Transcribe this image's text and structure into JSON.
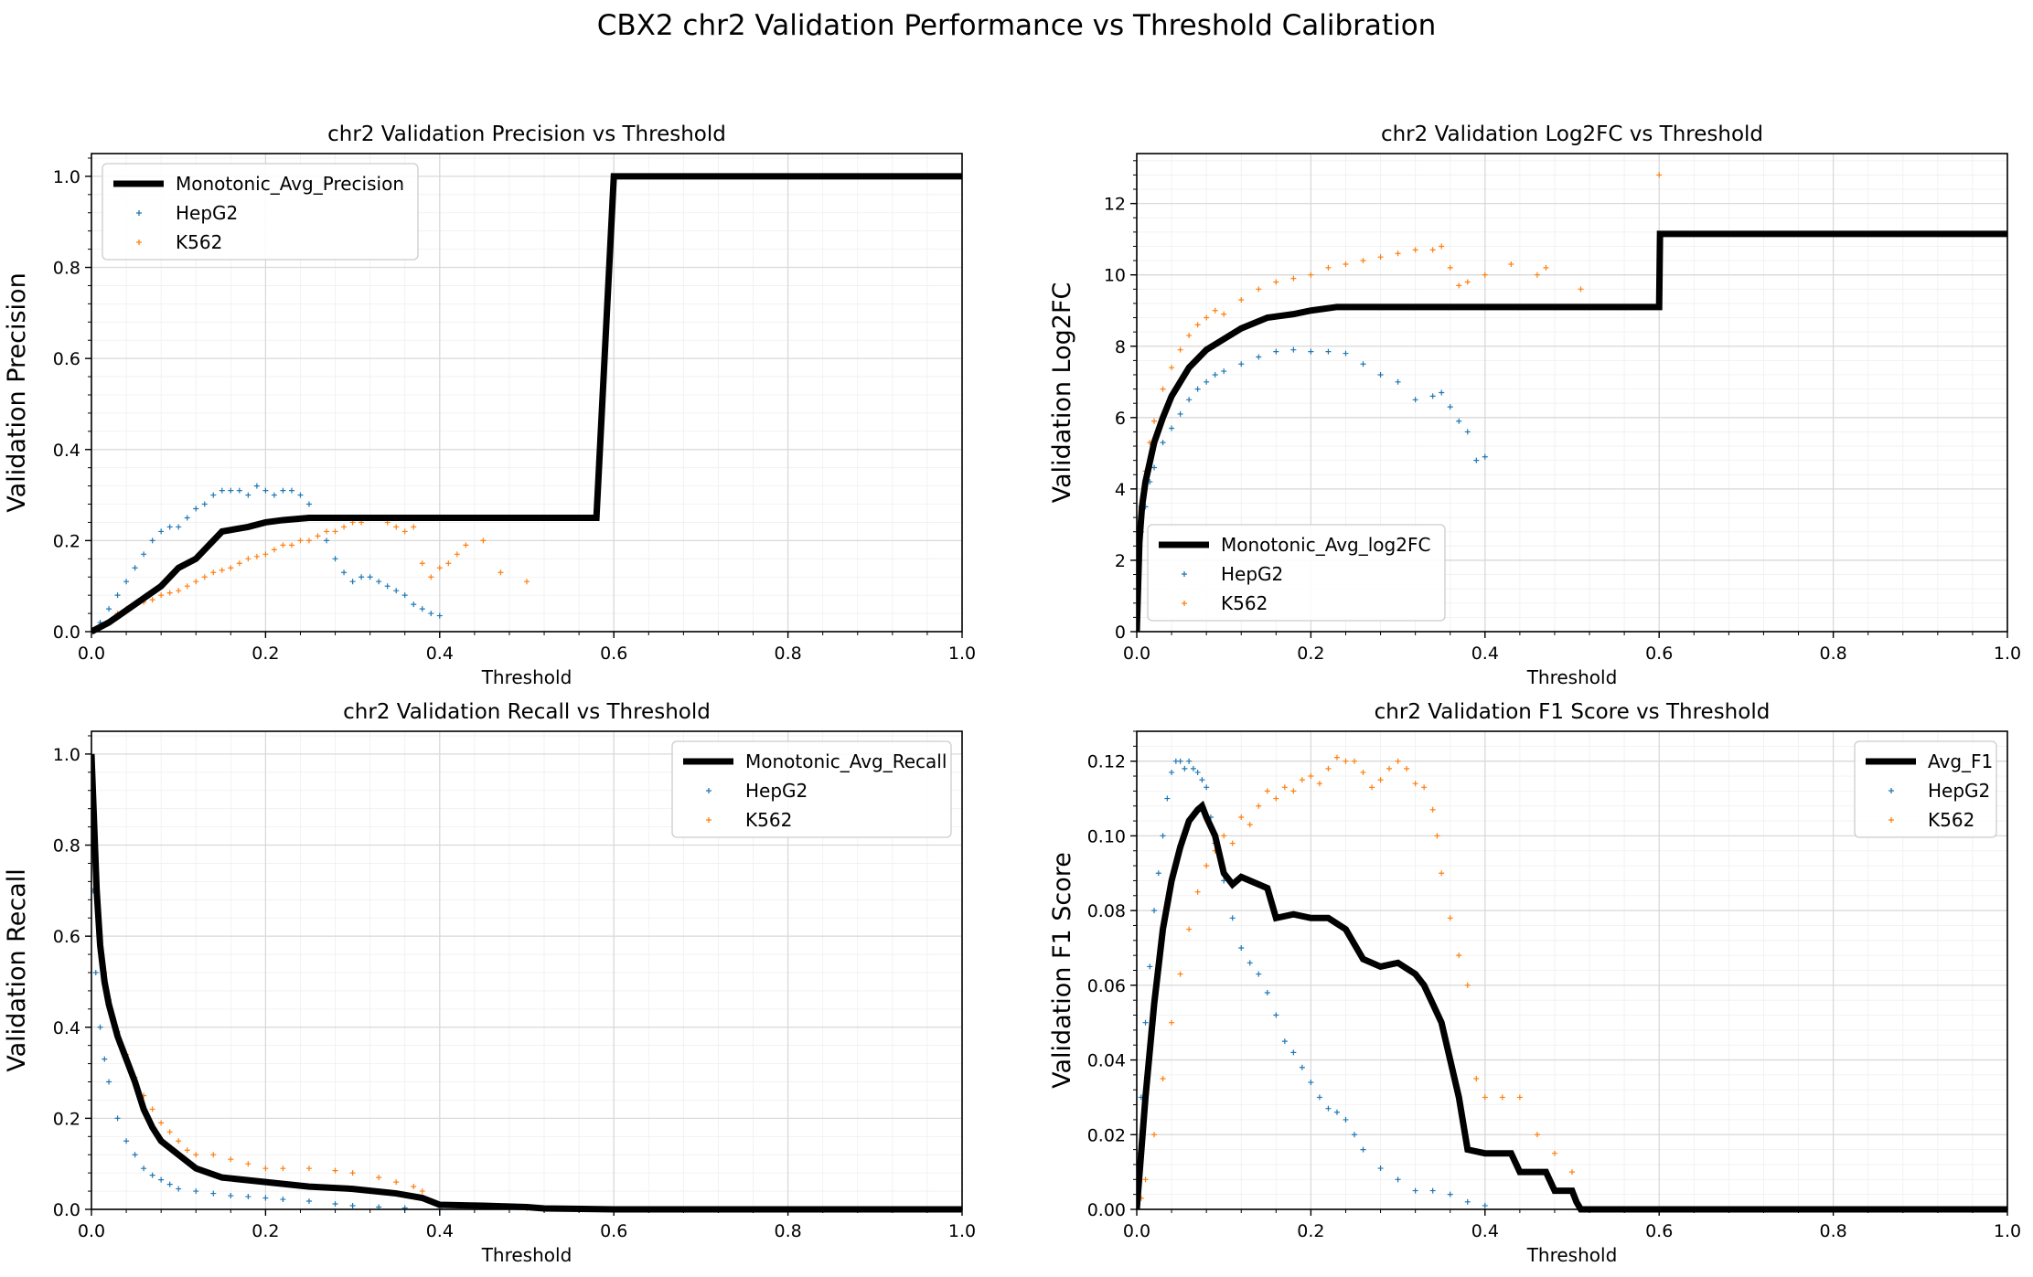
{
  "figure": {
    "suptitle": "CBX2 chr2 Validation Performance vs Threshold Calibration"
  },
  "colors": {
    "hepg2": "#1f77b4",
    "k562": "#ff7f0e",
    "avg": "#000000",
    "grid_major": "#d9d9d9",
    "grid_minor": "#efefef"
  },
  "chart_data": [
    {
      "type": "line",
      "title": "chr2 Validation Precision vs Threshold",
      "xlabel": "Threshold",
      "ylabel": "Validation Precision",
      "xlim": [
        0,
        1
      ],
      "ylim": [
        0,
        1.05
      ],
      "xticks": [
        "0.0",
        "0.2",
        "0.4",
        "0.6",
        "0.8",
        "1.0"
      ],
      "yticks": [
        "0.0",
        "0.2",
        "0.4",
        "0.6",
        "0.8",
        "1.0"
      ],
      "grid": true,
      "legend_position": "upper left",
      "series": [
        {
          "name": "Monotonic_Avg_Precision",
          "style": "line",
          "color": "#000000",
          "x": [
            0,
            0.02,
            0.05,
            0.08,
            0.1,
            0.12,
            0.15,
            0.18,
            0.2,
            0.22,
            0.25,
            0.3,
            0.35,
            0.4,
            0.5,
            0.58,
            0.6,
            0.7,
            0.8,
            1.0
          ],
          "y": [
            0,
            0.02,
            0.06,
            0.1,
            0.14,
            0.16,
            0.22,
            0.23,
            0.24,
            0.245,
            0.25,
            0.25,
            0.25,
            0.25,
            0.25,
            0.25,
            1.0,
            1.0,
            1.0,
            1.0
          ]
        },
        {
          "name": "HepG2",
          "style": "scatter",
          "color": "#1f77b4",
          "x": [
            0,
            0.01,
            0.02,
            0.03,
            0.04,
            0.05,
            0.06,
            0.07,
            0.08,
            0.09,
            0.1,
            0.11,
            0.12,
            0.13,
            0.14,
            0.15,
            0.16,
            0.17,
            0.18,
            0.19,
            0.2,
            0.21,
            0.22,
            0.23,
            0.24,
            0.25,
            0.26,
            0.27,
            0.28,
            0.29,
            0.3,
            0.31,
            0.32,
            0.33,
            0.34,
            0.35,
            0.36,
            0.37,
            0.38,
            0.39,
            0.4
          ],
          "y": [
            0,
            0.02,
            0.05,
            0.08,
            0.11,
            0.14,
            0.17,
            0.2,
            0.22,
            0.23,
            0.23,
            0.25,
            0.27,
            0.28,
            0.3,
            0.31,
            0.31,
            0.31,
            0.3,
            0.32,
            0.31,
            0.3,
            0.31,
            0.31,
            0.3,
            0.28,
            0.25,
            0.2,
            0.16,
            0.13,
            0.11,
            0.12,
            0.12,
            0.11,
            0.1,
            0.09,
            0.08,
            0.06,
            0.05,
            0.04,
            0.035
          ]
        },
        {
          "name": "K562",
          "style": "scatter",
          "color": "#ff7f0e",
          "x": [
            0.01,
            0.02,
            0.03,
            0.04,
            0.05,
            0.06,
            0.07,
            0.08,
            0.09,
            0.1,
            0.11,
            0.12,
            0.13,
            0.14,
            0.15,
            0.16,
            0.17,
            0.18,
            0.19,
            0.2,
            0.21,
            0.22,
            0.23,
            0.24,
            0.25,
            0.26,
            0.27,
            0.28,
            0.29,
            0.3,
            0.31,
            0.32,
            0.33,
            0.34,
            0.35,
            0.36,
            0.37,
            0.38,
            0.39,
            0.4,
            0.41,
            0.42,
            0.43,
            0.45,
            0.47,
            0.5
          ],
          "y": [
            0.01,
            0.02,
            0.04,
            0.05,
            0.06,
            0.065,
            0.07,
            0.08,
            0.085,
            0.09,
            0.1,
            0.11,
            0.12,
            0.13,
            0.135,
            0.14,
            0.15,
            0.16,
            0.165,
            0.17,
            0.18,
            0.19,
            0.19,
            0.2,
            0.2,
            0.21,
            0.22,
            0.22,
            0.23,
            0.24,
            0.24,
            0.25,
            0.25,
            0.24,
            0.23,
            0.22,
            0.23,
            0.15,
            0.12,
            0.14,
            0.15,
            0.17,
            0.19,
            0.2,
            0.13,
            0.11
          ]
        }
      ]
    },
    {
      "type": "line",
      "title": "chr2 Validation Log2FC vs Threshold",
      "xlabel": "Threshold",
      "ylabel": "Validation Log2FC",
      "xlim": [
        0,
        1
      ],
      "ylim": [
        0,
        13.4
      ],
      "xticks": [
        "0.0",
        "0.2",
        "0.4",
        "0.6",
        "0.8",
        "1.0"
      ],
      "yticks": [
        "0",
        "2",
        "4",
        "6",
        "8",
        "10",
        "12"
      ],
      "grid": true,
      "legend_position": "lower left",
      "series": [
        {
          "name": "Monotonic_Avg_log2FC",
          "style": "line",
          "color": "#000000",
          "x": [
            0,
            0.003,
            0.006,
            0.01,
            0.02,
            0.03,
            0.04,
            0.05,
            0.06,
            0.08,
            0.1,
            0.12,
            0.15,
            0.18,
            0.2,
            0.23,
            0.3,
            0.4,
            0.5,
            0.6,
            0.601,
            0.7,
            0.8,
            1.0
          ],
          "y": [
            0,
            2.5,
            3.5,
            4.2,
            5.3,
            6.0,
            6.6,
            7.0,
            7.4,
            7.9,
            8.2,
            8.5,
            8.8,
            8.9,
            9.0,
            9.1,
            9.1,
            9.1,
            9.1,
            9.1,
            11.15,
            11.15,
            11.15,
            11.15
          ]
        },
        {
          "name": "HepG2",
          "style": "scatter",
          "color": "#1f77b4",
          "x": [
            0.003,
            0.005,
            0.01,
            0.015,
            0.02,
            0.03,
            0.04,
            0.05,
            0.06,
            0.07,
            0.08,
            0.09,
            0.1,
            0.12,
            0.14,
            0.16,
            0.18,
            0.2,
            0.22,
            0.24,
            0.26,
            0.28,
            0.3,
            0.32,
            0.34,
            0.35,
            0.36,
            0.37,
            0.38,
            0.39,
            0.4
          ],
          "y": [
            2.0,
            2.8,
            3.5,
            4.2,
            4.6,
            5.3,
            5.7,
            6.1,
            6.5,
            6.8,
            7.0,
            7.2,
            7.3,
            7.5,
            7.7,
            7.85,
            7.9,
            7.85,
            7.85,
            7.8,
            7.5,
            7.2,
            7.0,
            6.5,
            6.6,
            6.7,
            6.3,
            5.9,
            5.6,
            4.8,
            4.9
          ]
        },
        {
          "name": "K562",
          "style": "scatter",
          "color": "#ff7f0e",
          "x": [
            0.003,
            0.005,
            0.01,
            0.015,
            0.02,
            0.03,
            0.04,
            0.05,
            0.06,
            0.07,
            0.08,
            0.09,
            0.1,
            0.12,
            0.14,
            0.16,
            0.18,
            0.2,
            0.22,
            0.24,
            0.26,
            0.28,
            0.3,
            0.32,
            0.34,
            0.35,
            0.36,
            0.37,
            0.38,
            0.4,
            0.43,
            0.46,
            0.47,
            0.51,
            0.6
          ],
          "y": [
            2.5,
            3.5,
            4.5,
            5.3,
            5.9,
            6.8,
            7.4,
            7.9,
            8.3,
            8.6,
            8.8,
            9.0,
            8.9,
            9.3,
            9.6,
            9.8,
            9.9,
            10.0,
            10.2,
            10.3,
            10.4,
            10.5,
            10.6,
            10.7,
            10.7,
            10.8,
            10.2,
            9.7,
            9.8,
            10.0,
            10.3,
            10.0,
            10.2,
            9.6,
            12.8
          ]
        }
      ]
    },
    {
      "type": "line",
      "title": "chr2 Validation Recall vs Threshold",
      "xlabel": "Threshold",
      "ylabel": "Validation Recall",
      "xlim": [
        0,
        1
      ],
      "ylim": [
        0,
        1.05
      ],
      "xticks": [
        "0.0",
        "0.2",
        "0.4",
        "0.6",
        "0.8",
        "1.0"
      ],
      "yticks": [
        "0.0",
        "0.2",
        "0.4",
        "0.6",
        "0.8",
        "1.0"
      ],
      "grid": true,
      "legend_position": "upper right",
      "series": [
        {
          "name": "Monotonic_Avg_Recall",
          "style": "line",
          "color": "#000000",
          "x": [
            0,
            0.003,
            0.006,
            0.01,
            0.015,
            0.02,
            0.03,
            0.04,
            0.05,
            0.06,
            0.07,
            0.08,
            0.1,
            0.12,
            0.15,
            0.2,
            0.25,
            0.3,
            0.35,
            0.38,
            0.4,
            0.45,
            0.5,
            0.52,
            0.6,
            0.8,
            1.0
          ],
          "y": [
            1.0,
            0.85,
            0.7,
            0.58,
            0.5,
            0.45,
            0.38,
            0.33,
            0.28,
            0.22,
            0.18,
            0.15,
            0.12,
            0.09,
            0.07,
            0.06,
            0.05,
            0.045,
            0.035,
            0.025,
            0.01,
            0.008,
            0.005,
            0.002,
            0,
            0,
            0
          ]
        },
        {
          "name": "HepG2",
          "style": "scatter",
          "color": "#1f77b4",
          "x": [
            0.002,
            0.005,
            0.01,
            0.015,
            0.02,
            0.03,
            0.04,
            0.05,
            0.06,
            0.07,
            0.08,
            0.09,
            0.1,
            0.12,
            0.14,
            0.16,
            0.18,
            0.2,
            0.22,
            0.25,
            0.28,
            0.3,
            0.33,
            0.36,
            0.4
          ],
          "y": [
            0.7,
            0.52,
            0.4,
            0.33,
            0.28,
            0.2,
            0.15,
            0.12,
            0.09,
            0.075,
            0.065,
            0.055,
            0.045,
            0.04,
            0.035,
            0.03,
            0.028,
            0.025,
            0.022,
            0.018,
            0.012,
            0.008,
            0.005,
            0.003,
            0.001
          ]
        },
        {
          "name": "K562",
          "style": "scatter",
          "color": "#ff7f0e",
          "x": [
            0.002,
            0.005,
            0.01,
            0.015,
            0.02,
            0.03,
            0.04,
            0.05,
            0.06,
            0.07,
            0.08,
            0.09,
            0.1,
            0.11,
            0.12,
            0.14,
            0.16,
            0.18,
            0.2,
            0.22,
            0.25,
            0.28,
            0.3,
            0.33,
            0.35,
            0.37,
            0.38,
            0.4,
            0.45,
            0.5
          ],
          "y": [
            0.8,
            0.7,
            0.6,
            0.52,
            0.46,
            0.39,
            0.34,
            0.29,
            0.25,
            0.22,
            0.19,
            0.17,
            0.15,
            0.13,
            0.12,
            0.12,
            0.11,
            0.1,
            0.09,
            0.09,
            0.09,
            0.085,
            0.08,
            0.07,
            0.06,
            0.05,
            0.04,
            0.01,
            0.005,
            0.002
          ]
        }
      ]
    },
    {
      "type": "line",
      "title": "chr2 Validation F1 Score vs Threshold",
      "xlabel": "Threshold",
      "ylabel": "Validation F1 Score",
      "xlim": [
        0,
        1
      ],
      "ylim": [
        0,
        0.128
      ],
      "xticks": [
        "0.0",
        "0.2",
        "0.4",
        "0.6",
        "0.8",
        "1.0"
      ],
      "yticks": [
        "0.00",
        "0.02",
        "0.04",
        "0.06",
        "0.08",
        "0.10",
        "0.12"
      ],
      "grid": true,
      "legend_position": "upper right",
      "series": [
        {
          "name": "Avg_F1",
          "style": "line",
          "color": "#000000",
          "x": [
            0,
            0.01,
            0.02,
            0.03,
            0.04,
            0.05,
            0.06,
            0.07,
            0.075,
            0.08,
            0.09,
            0.1,
            0.11,
            0.12,
            0.14,
            0.15,
            0.16,
            0.18,
            0.2,
            0.22,
            0.24,
            0.26,
            0.28,
            0.3,
            0.32,
            0.33,
            0.34,
            0.35,
            0.36,
            0.37,
            0.38,
            0.4,
            0.43,
            0.44,
            0.47,
            0.48,
            0.5,
            0.505,
            0.51,
            0.6,
            0.8,
            1.0
          ],
          "y": [
            0,
            0.03,
            0.055,
            0.075,
            0.088,
            0.097,
            0.104,
            0.107,
            0.108,
            0.105,
            0.1,
            0.09,
            0.087,
            0.089,
            0.087,
            0.086,
            0.078,
            0.079,
            0.078,
            0.078,
            0.075,
            0.067,
            0.065,
            0.066,
            0.063,
            0.06,
            0.055,
            0.05,
            0.04,
            0.03,
            0.016,
            0.015,
            0.015,
            0.01,
            0.01,
            0.005,
            0.005,
            0.002,
            0,
            0,
            0,
            0
          ]
        },
        {
          "name": "HepG2",
          "style": "scatter",
          "color": "#1f77b4",
          "x": [
            0.002,
            0.005,
            0.01,
            0.015,
            0.02,
            0.025,
            0.03,
            0.035,
            0.04,
            0.045,
            0.05,
            0.055,
            0.06,
            0.065,
            0.07,
            0.075,
            0.08,
            0.085,
            0.09,
            0.1,
            0.11,
            0.12,
            0.13,
            0.14,
            0.15,
            0.16,
            0.17,
            0.18,
            0.19,
            0.2,
            0.21,
            0.22,
            0.23,
            0.24,
            0.25,
            0.26,
            0.28,
            0.3,
            0.32,
            0.34,
            0.36,
            0.38,
            0.4
          ],
          "y": [
            0.015,
            0.03,
            0.05,
            0.065,
            0.08,
            0.09,
            0.1,
            0.11,
            0.117,
            0.12,
            0.12,
            0.118,
            0.12,
            0.118,
            0.117,
            0.115,
            0.113,
            0.105,
            0.098,
            0.088,
            0.078,
            0.07,
            0.066,
            0.063,
            0.058,
            0.052,
            0.045,
            0.042,
            0.038,
            0.034,
            0.03,
            0.027,
            0.026,
            0.024,
            0.02,
            0.016,
            0.011,
            0.008,
            0.005,
            0.005,
            0.004,
            0.002,
            0.001
          ]
        },
        {
          "name": "K562",
          "style": "scatter",
          "color": "#ff7f0e",
          "x": [
            0.005,
            0.01,
            0.02,
            0.03,
            0.04,
            0.05,
            0.06,
            0.07,
            0.08,
            0.09,
            0.1,
            0.11,
            0.12,
            0.13,
            0.14,
            0.15,
            0.16,
            0.17,
            0.18,
            0.19,
            0.2,
            0.21,
            0.22,
            0.23,
            0.24,
            0.25,
            0.26,
            0.27,
            0.28,
            0.29,
            0.3,
            0.31,
            0.32,
            0.33,
            0.34,
            0.345,
            0.35,
            0.36,
            0.37,
            0.38,
            0.39,
            0.4,
            0.42,
            0.44,
            0.46,
            0.48,
            0.5
          ],
          "y": [
            0.003,
            0.008,
            0.02,
            0.035,
            0.05,
            0.063,
            0.075,
            0.085,
            0.092,
            0.096,
            0.1,
            0.098,
            0.105,
            0.103,
            0.108,
            0.112,
            0.11,
            0.113,
            0.112,
            0.115,
            0.116,
            0.114,
            0.118,
            0.121,
            0.12,
            0.12,
            0.117,
            0.113,
            0.115,
            0.118,
            0.12,
            0.118,
            0.114,
            0.113,
            0.107,
            0.1,
            0.09,
            0.078,
            0.068,
            0.06,
            0.035,
            0.03,
            0.03,
            0.03,
            0.02,
            0.015,
            0.01
          ]
        }
      ]
    }
  ]
}
